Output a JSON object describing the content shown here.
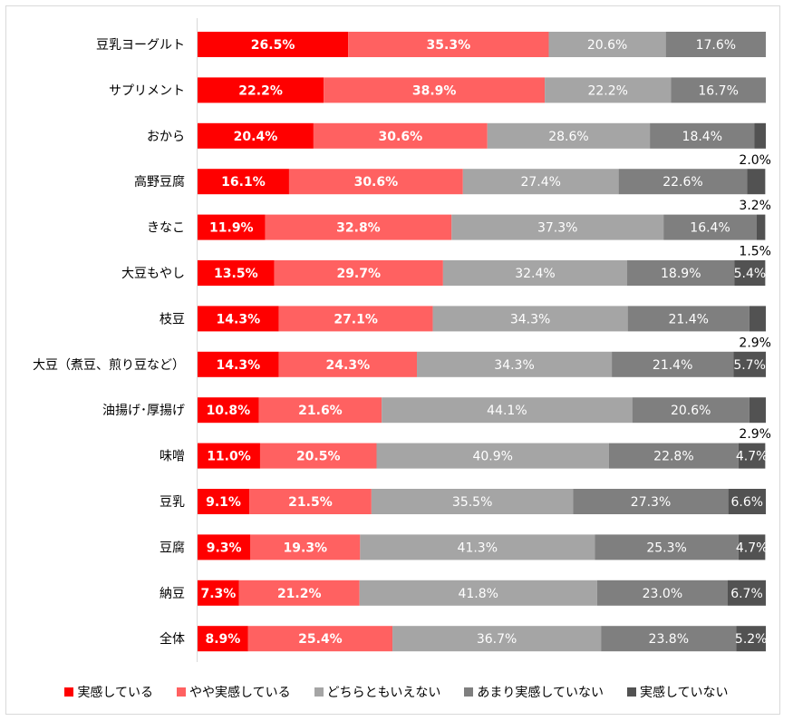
{
  "chart_data": {
    "type": "bar",
    "orientation": "horizontal",
    "stacked": true,
    "xlim": [
      0,
      100
    ],
    "unit": "%",
    "categories": [
      "豆乳ヨーグルト",
      "サプリメント",
      "おから",
      "高野豆腐",
      "きなこ",
      "大豆もやし",
      "枝豆",
      "大豆（煮豆、煎り豆など）",
      "油揚げ･厚揚げ",
      "味噌",
      "豆乳",
      "豆腐",
      "納豆",
      "全体"
    ],
    "series": [
      {
        "name": "実感している",
        "color": "#FF0000",
        "values": [
          26.5,
          22.2,
          20.4,
          16.1,
          11.9,
          13.5,
          14.3,
          14.3,
          10.8,
          11.0,
          9.1,
          9.3,
          7.3,
          8.9
        ]
      },
      {
        "name": "やや実感している",
        "color": "#FF6161",
        "values": [
          35.3,
          38.9,
          30.6,
          30.6,
          32.8,
          29.7,
          27.1,
          24.3,
          21.6,
          20.5,
          21.5,
          19.3,
          21.2,
          25.4
        ]
      },
      {
        "name": "どちらともいえない",
        "color": "#A5A5A5",
        "values": [
          20.6,
          22.2,
          28.6,
          27.4,
          37.3,
          32.4,
          34.3,
          34.3,
          44.1,
          40.9,
          35.5,
          41.3,
          41.8,
          36.7
        ]
      },
      {
        "name": "あまり実感していない",
        "color": "#7F7F7F",
        "values": [
          17.6,
          16.7,
          18.4,
          22.6,
          16.4,
          18.9,
          21.4,
          21.4,
          20.6,
          22.8,
          27.3,
          25.3,
          23.0,
          23.8
        ]
      },
      {
        "name": "実感していない",
        "color": "#525252",
        "values": [
          0,
          0,
          2.0,
          3.2,
          1.5,
          5.4,
          2.9,
          5.7,
          2.9,
          4.7,
          6.6,
          4.7,
          6.7,
          5.2
        ]
      }
    ],
    "legend_position": "bottom",
    "grid": false
  }
}
